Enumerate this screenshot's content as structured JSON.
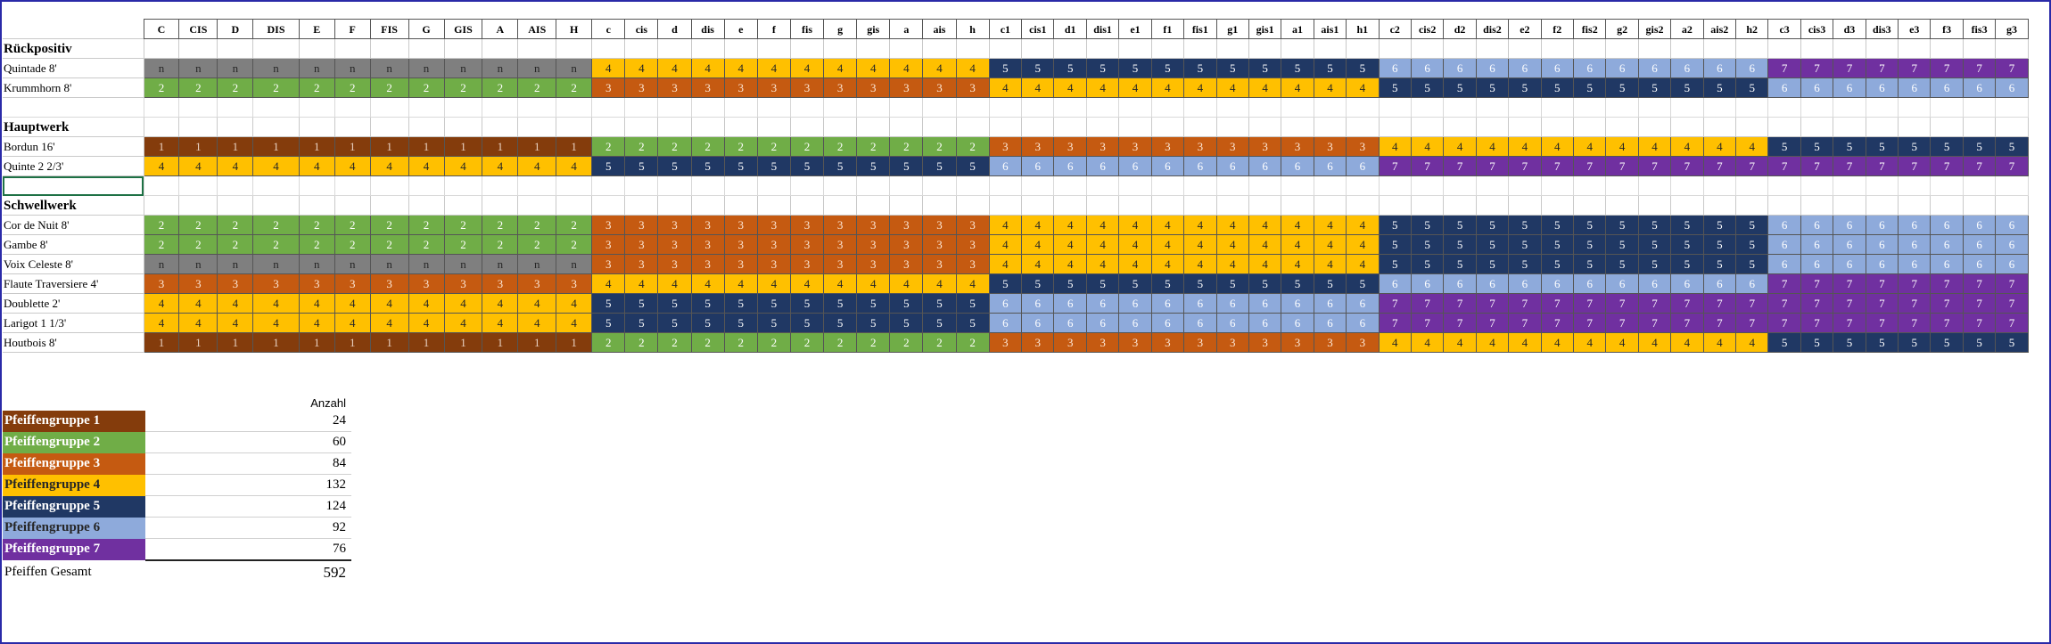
{
  "grid": {
    "notes": [
      "C",
      "CIS",
      "D",
      "DIS",
      "E",
      "F",
      "FIS",
      "G",
      "GIS",
      "A",
      "AIS",
      "H",
      "c",
      "cis",
      "d",
      "dis",
      "e",
      "f",
      "fis",
      "g",
      "gis",
      "a",
      "ais",
      "h",
      "c1",
      "cis1",
      "d1",
      "dis1",
      "e1",
      "f1",
      "fis1",
      "g1",
      "gis1",
      "a1",
      "ais1",
      "h1",
      "c2",
      "cis2",
      "d2",
      "dis2",
      "e2",
      "f2",
      "fis2",
      "g2",
      "gis2",
      "a2",
      "ais2",
      "h2",
      "c3",
      "cis3",
      "d3",
      "dis3",
      "e3",
      "f3",
      "fis3",
      "g3"
    ],
    "rows": [
      {
        "type": "section",
        "label": "Rückpositiv"
      },
      {
        "type": "stop",
        "label": "Quintade 8'",
        "cells": [
          "n",
          "n",
          "n",
          "n",
          "n",
          "n",
          "n",
          "n",
          "n",
          "n",
          "n",
          "n",
          "4",
          "4",
          "4",
          "4",
          "4",
          "4",
          "4",
          "4",
          "4",
          "4",
          "4",
          "4",
          "5",
          "5",
          "5",
          "5",
          "5",
          "5",
          "5",
          "5",
          "5",
          "5",
          "5",
          "5",
          "6",
          "6",
          "6",
          "6",
          "6",
          "6",
          "6",
          "6",
          "6",
          "6",
          "6",
          "6",
          "7",
          "7",
          "7",
          "7",
          "7",
          "7",
          "7",
          "7"
        ]
      },
      {
        "type": "stop",
        "label": "Krummhorn 8'",
        "cells": [
          "2",
          "2",
          "2",
          "2",
          "2",
          "2",
          "2",
          "2",
          "2",
          "2",
          "2",
          "2",
          "3",
          "3",
          "3",
          "3",
          "3",
          "3",
          "3",
          "3",
          "3",
          "3",
          "3",
          "3",
          "4",
          "4",
          "4",
          "4",
          "4",
          "4",
          "4",
          "4",
          "4",
          "4",
          "4",
          "4",
          "5",
          "5",
          "5",
          "5",
          "5",
          "5",
          "5",
          "5",
          "5",
          "5",
          "5",
          "5",
          "6",
          "6",
          "6",
          "6",
          "6",
          "6",
          "6",
          "6"
        ]
      },
      {
        "type": "blank"
      },
      {
        "type": "section",
        "label": "Hauptwerk"
      },
      {
        "type": "stop",
        "label": "Bordun 16'",
        "cells": [
          "1",
          "1",
          "1",
          "1",
          "1",
          "1",
          "1",
          "1",
          "1",
          "1",
          "1",
          "1",
          "2",
          "2",
          "2",
          "2",
          "2",
          "2",
          "2",
          "2",
          "2",
          "2",
          "2",
          "2",
          "3",
          "3",
          "3",
          "3",
          "3",
          "3",
          "3",
          "3",
          "3",
          "3",
          "3",
          "3",
          "4",
          "4",
          "4",
          "4",
          "4",
          "4",
          "4",
          "4",
          "4",
          "4",
          "4",
          "4",
          "5",
          "5",
          "5",
          "5",
          "5",
          "5",
          "5",
          "5"
        ]
      },
      {
        "type": "stop",
        "label": "Quinte 2 2/3'",
        "cells": [
          "4",
          "4",
          "4",
          "4",
          "4",
          "4",
          "4",
          "4",
          "4",
          "4",
          "4",
          "4",
          "5",
          "5",
          "5",
          "5",
          "5",
          "5",
          "5",
          "5",
          "5",
          "5",
          "5",
          "5",
          "6",
          "6",
          "6",
          "6",
          "6",
          "6",
          "6",
          "6",
          "6",
          "6",
          "6",
          "6",
          "7",
          "7",
          "7",
          "7",
          "7",
          "7",
          "7",
          "7",
          "7",
          "7",
          "7",
          "7",
          "7",
          "7",
          "7",
          "7",
          "7",
          "7",
          "7",
          "7"
        ]
      },
      {
        "type": "blank",
        "selected": true
      },
      {
        "type": "section",
        "label": "Schwellwerk"
      },
      {
        "type": "stop",
        "label": "Cor de Nuit 8'",
        "cells": [
          "2",
          "2",
          "2",
          "2",
          "2",
          "2",
          "2",
          "2",
          "2",
          "2",
          "2",
          "2",
          "3",
          "3",
          "3",
          "3",
          "3",
          "3",
          "3",
          "3",
          "3",
          "3",
          "3",
          "3",
          "4",
          "4",
          "4",
          "4",
          "4",
          "4",
          "4",
          "4",
          "4",
          "4",
          "4",
          "4",
          "5",
          "5",
          "5",
          "5",
          "5",
          "5",
          "5",
          "5",
          "5",
          "5",
          "5",
          "5",
          "6",
          "6",
          "6",
          "6",
          "6",
          "6",
          "6",
          "6"
        ]
      },
      {
        "type": "stop",
        "label": "Gambe 8'",
        "cells": [
          "2",
          "2",
          "2",
          "2",
          "2",
          "2",
          "2",
          "2",
          "2",
          "2",
          "2",
          "2",
          "3",
          "3",
          "3",
          "3",
          "3",
          "3",
          "3",
          "3",
          "3",
          "3",
          "3",
          "3",
          "4",
          "4",
          "4",
          "4",
          "4",
          "4",
          "4",
          "4",
          "4",
          "4",
          "4",
          "4",
          "5",
          "5",
          "5",
          "5",
          "5",
          "5",
          "5",
          "5",
          "5",
          "5",
          "5",
          "5",
          "6",
          "6",
          "6",
          "6",
          "6",
          "6",
          "6",
          "6"
        ]
      },
      {
        "type": "stop",
        "label": "Voix Celeste 8'",
        "cells": [
          "n",
          "n",
          "n",
          "n",
          "n",
          "n",
          "n",
          "n",
          "n",
          "n",
          "n",
          "n",
          "3",
          "3",
          "3",
          "3",
          "3",
          "3",
          "3",
          "3",
          "3",
          "3",
          "3",
          "3",
          "4",
          "4",
          "4",
          "4",
          "4",
          "4",
          "4",
          "4",
          "4",
          "4",
          "4",
          "4",
          "5",
          "5",
          "5",
          "5",
          "5",
          "5",
          "5",
          "5",
          "5",
          "5",
          "5",
          "5",
          "6",
          "6",
          "6",
          "6",
          "6",
          "6",
          "6",
          "6"
        ]
      },
      {
        "type": "stop",
        "label": "Flaute Traversiere 4'",
        "cells": [
          "3",
          "3",
          "3",
          "3",
          "3",
          "3",
          "3",
          "3",
          "3",
          "3",
          "3",
          "3",
          "4",
          "4",
          "4",
          "4",
          "4",
          "4",
          "4",
          "4",
          "4",
          "4",
          "4",
          "4",
          "5",
          "5",
          "5",
          "5",
          "5",
          "5",
          "5",
          "5",
          "5",
          "5",
          "5",
          "5",
          "6",
          "6",
          "6",
          "6",
          "6",
          "6",
          "6",
          "6",
          "6",
          "6",
          "6",
          "6",
          "7",
          "7",
          "7",
          "7",
          "7",
          "7",
          "7",
          "7"
        ]
      },
      {
        "type": "stop",
        "label": "Doublette 2'",
        "cells": [
          "4",
          "4",
          "4",
          "4",
          "4",
          "4",
          "4",
          "4",
          "4",
          "4",
          "4",
          "4",
          "5",
          "5",
          "5",
          "5",
          "5",
          "5",
          "5",
          "5",
          "5",
          "5",
          "5",
          "5",
          "6",
          "6",
          "6",
          "6",
          "6",
          "6",
          "6",
          "6",
          "6",
          "6",
          "6",
          "6",
          "7",
          "7",
          "7",
          "7",
          "7",
          "7",
          "7",
          "7",
          "7",
          "7",
          "7",
          "7",
          "7",
          "7",
          "7",
          "7",
          "7",
          "7",
          "7",
          "7"
        ]
      },
      {
        "type": "stop",
        "label": "Larigot 1 1/3'",
        "cells": [
          "4",
          "4",
          "4",
          "4",
          "4",
          "4",
          "4",
          "4",
          "4",
          "4",
          "4",
          "4",
          "5",
          "5",
          "5",
          "5",
          "5",
          "5",
          "5",
          "5",
          "5",
          "5",
          "5",
          "5",
          "6",
          "6",
          "6",
          "6",
          "6",
          "6",
          "6",
          "6",
          "6",
          "6",
          "6",
          "6",
          "7",
          "7",
          "7",
          "7",
          "7",
          "7",
          "7",
          "7",
          "7",
          "7",
          "7",
          "7",
          "7",
          "7",
          "7",
          "7",
          "7",
          "7",
          "7",
          "7"
        ]
      },
      {
        "type": "stop",
        "label": "Houtbois 8'",
        "cells": [
          "1",
          "1",
          "1",
          "1",
          "1",
          "1",
          "1",
          "1",
          "1",
          "1",
          "1",
          "1",
          "2",
          "2",
          "2",
          "2",
          "2",
          "2",
          "2",
          "2",
          "2",
          "2",
          "2",
          "2",
          "3",
          "3",
          "3",
          "3",
          "3",
          "3",
          "3",
          "3",
          "3",
          "3",
          "3",
          "3",
          "4",
          "4",
          "4",
          "4",
          "4",
          "4",
          "4",
          "4",
          "4",
          "4",
          "4",
          "4",
          "5",
          "5",
          "5",
          "5",
          "5",
          "5",
          "5",
          "5"
        ]
      }
    ]
  },
  "colors": {
    "n": "#7f7f7f",
    "1": "#843c0c",
    "2": "#70ad47",
    "3": "#c55a11",
    "4": "#ffc000",
    "5": "#203864",
    "6": "#8eaadb",
    "7": "#7030a0"
  },
  "summary": {
    "count_header": "Anzahl",
    "groups": [
      {
        "id": "1",
        "label": "Pfeiffengruppe 1",
        "count": "24"
      },
      {
        "id": "2",
        "label": "Pfeiffengruppe 2",
        "count": "60"
      },
      {
        "id": "3",
        "label": "Pfeiffengruppe 3",
        "count": "84"
      },
      {
        "id": "4",
        "label": "Pfeiffengruppe 4",
        "count": "132"
      },
      {
        "id": "5",
        "label": "Pfeiffengruppe 5",
        "count": "124"
      },
      {
        "id": "6",
        "label": "Pfeiffengruppe 6",
        "count": "92"
      },
      {
        "id": "7",
        "label": "Pfeiffengruppe 7",
        "count": "76"
      }
    ],
    "total_label": "Pfeiffen Gesamt",
    "total": "592"
  }
}
